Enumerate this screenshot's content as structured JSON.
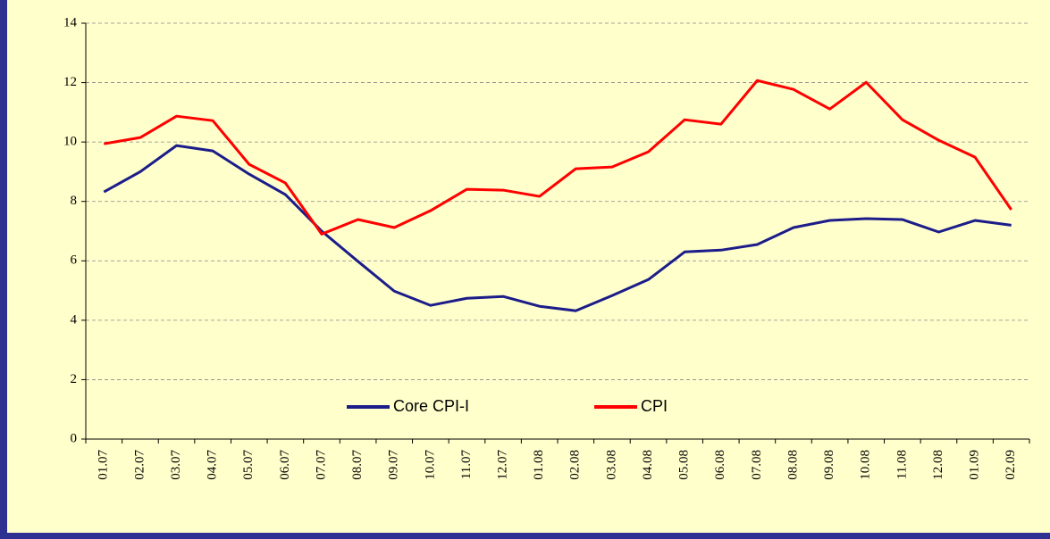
{
  "chart_data": {
    "type": "line",
    "categories": [
      "01.07",
      "02.07",
      "03.07",
      "04.07",
      "05.07",
      "06.07",
      "07.07",
      "08.07",
      "09.07",
      "10.07",
      "11.07",
      "12.07",
      "01.08",
      "02.08",
      "03.08",
      "04.08",
      "05.08",
      "06.08",
      "07.08",
      "08.08",
      "09.08",
      "10.08",
      "11.08",
      "12.08",
      "01.09",
      "02.09"
    ],
    "series": [
      {
        "name": "Core CPI-I",
        "color": "#1c1c8a",
        "values": [
          8.32,
          9.0,
          9.88,
          9.7,
          8.92,
          8.23,
          7.0,
          5.98,
          4.98,
          4.5,
          4.74,
          4.8,
          4.47,
          4.32,
          4.83,
          5.37,
          6.3,
          6.36,
          6.55,
          7.12,
          7.36,
          7.42,
          7.39,
          6.97,
          7.36,
          7.2
        ]
      },
      {
        "name": "CPI",
        "color": "#ff0000",
        "values": [
          9.94,
          10.15,
          10.87,
          10.72,
          9.25,
          8.62,
          6.9,
          7.39,
          7.12,
          7.69,
          8.41,
          8.38,
          8.17,
          9.1,
          9.16,
          9.67,
          10.75,
          10.6,
          12.07,
          11.77,
          11.11,
          12.01,
          10.75,
          10.06,
          9.49,
          7.72
        ]
      }
    ],
    "ylim": [
      0,
      14
    ],
    "yticks": [
      0,
      2,
      4,
      6,
      8,
      10,
      12,
      14
    ],
    "grid": true,
    "legend": "bottom"
  }
}
